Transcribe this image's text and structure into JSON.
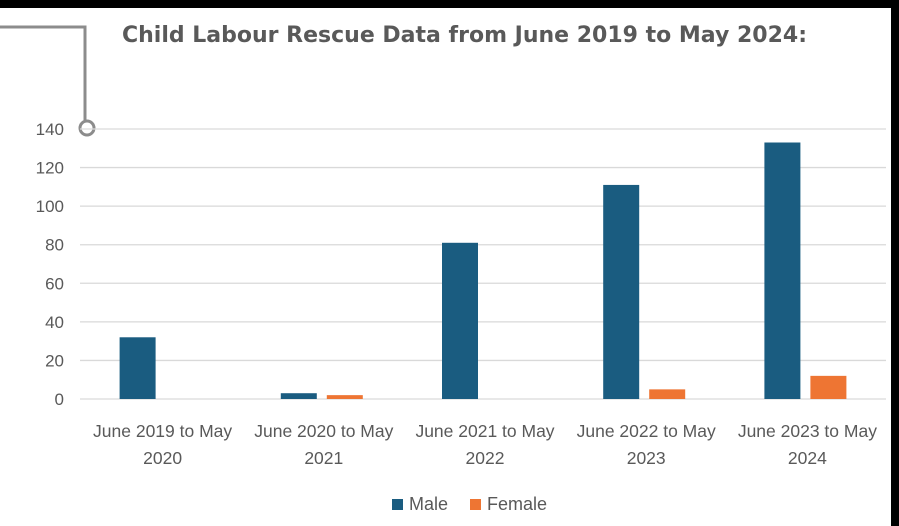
{
  "colors": {
    "male": "#1a5c80",
    "female": "#ee7533",
    "grid": "#d9d9d9",
    "text": "#595959",
    "connector": "#8c8c8c"
  },
  "chart_data": {
    "type": "bar",
    "title": "Child Labour Rescue Data from June 2019 to May 2024:",
    "categories": [
      [
        "June 2019 to May",
        "2020"
      ],
      [
        "June 2020 to May",
        "2021"
      ],
      [
        "June 2021 to May",
        "2022"
      ],
      [
        "June 2022 to May",
        "2023"
      ],
      [
        "June 2023 to May",
        "2024"
      ]
    ],
    "series": [
      {
        "name": "Male",
        "values": [
          32,
          3,
          81,
          111,
          133
        ]
      },
      {
        "name": "Female",
        "values": [
          0,
          2,
          0,
          5,
          12
        ]
      }
    ],
    "ylim": [
      0,
      140
    ],
    "yticks": [
      0,
      20,
      40,
      60,
      80,
      100,
      120,
      140
    ],
    "grid": true,
    "legend": "bottom"
  }
}
